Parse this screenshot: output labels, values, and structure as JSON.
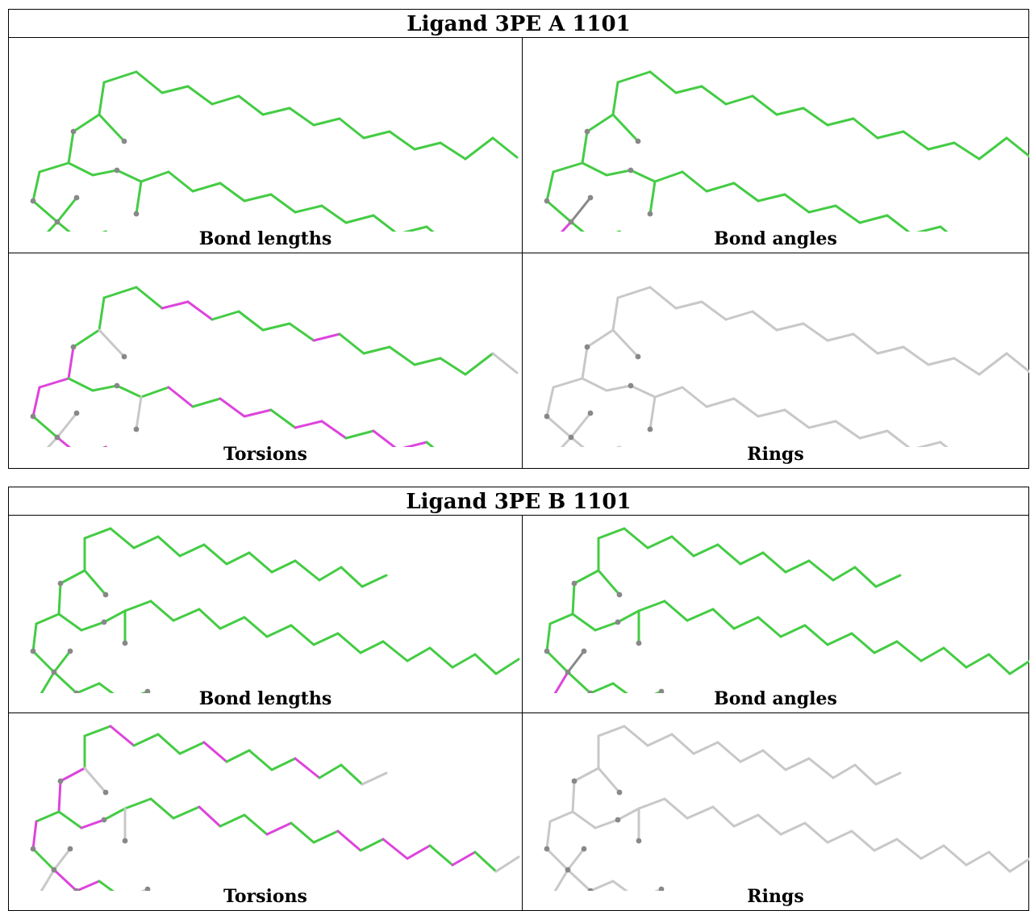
{
  "ligands": [
    {
      "title": "Ligand 3PE A 1101",
      "captions": {
        "bond_lengths": "Bond lengths",
        "bond_angles": "Bond angles",
        "torsions": "Torsions",
        "rings": "Rings"
      }
    },
    {
      "title": "Ligand 3PE B 1101",
      "captions": {
        "bond_lengths": "Bond lengths",
        "bond_angles": "Bond angles",
        "torsions": "Torsions",
        "rings": "Rings"
      }
    }
  ],
  "colors": {
    "ok": "#44cc44",
    "outlier": "#dd44dd",
    "neutral": "#c8c8c8",
    "atom": "#888888"
  }
}
